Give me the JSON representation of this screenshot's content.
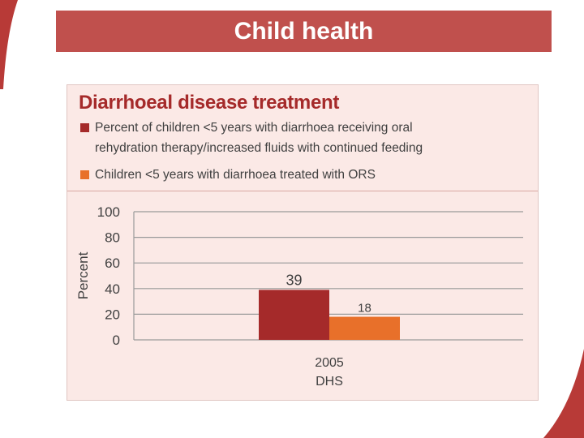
{
  "slide": {
    "title": "Child health"
  },
  "colors": {
    "title_bar": "#c0504d",
    "heading": "#a52a2a",
    "series_1": "#a52a2a",
    "series_2": "#e8702a",
    "card_bg": "#fbe9e6"
  },
  "chart_data": {
    "type": "bar",
    "title": "Diarrhoeal disease treatment",
    "categories": [
      "2005\nDHS"
    ],
    "category_lines": [
      [
        "2005",
        "DHS"
      ]
    ],
    "series": [
      {
        "name": "Percent of children <5 years with diarrhoea receiving oral rehydration therapy/increased fluids with continued feeding",
        "name_lines": [
          "Percent of children <5 years with diarrhoea receiving oral",
          "rehydration therapy/increased fluids with continued feeding"
        ],
        "values": [
          39
        ],
        "color": "#a52a2a"
      },
      {
        "name": "Children <5 years with diarrhoea treated with ORS",
        "name_lines": [
          "Children <5 years with diarrhoea treated with ORS"
        ],
        "values": [
          18
        ],
        "color": "#e8702a"
      }
    ],
    "ylabel": "Percent",
    "xlabel": "",
    "ylim": [
      0,
      100
    ],
    "yticks": [
      0,
      20,
      40,
      60,
      80,
      100
    ],
    "grid": true,
    "legend": "top"
  }
}
